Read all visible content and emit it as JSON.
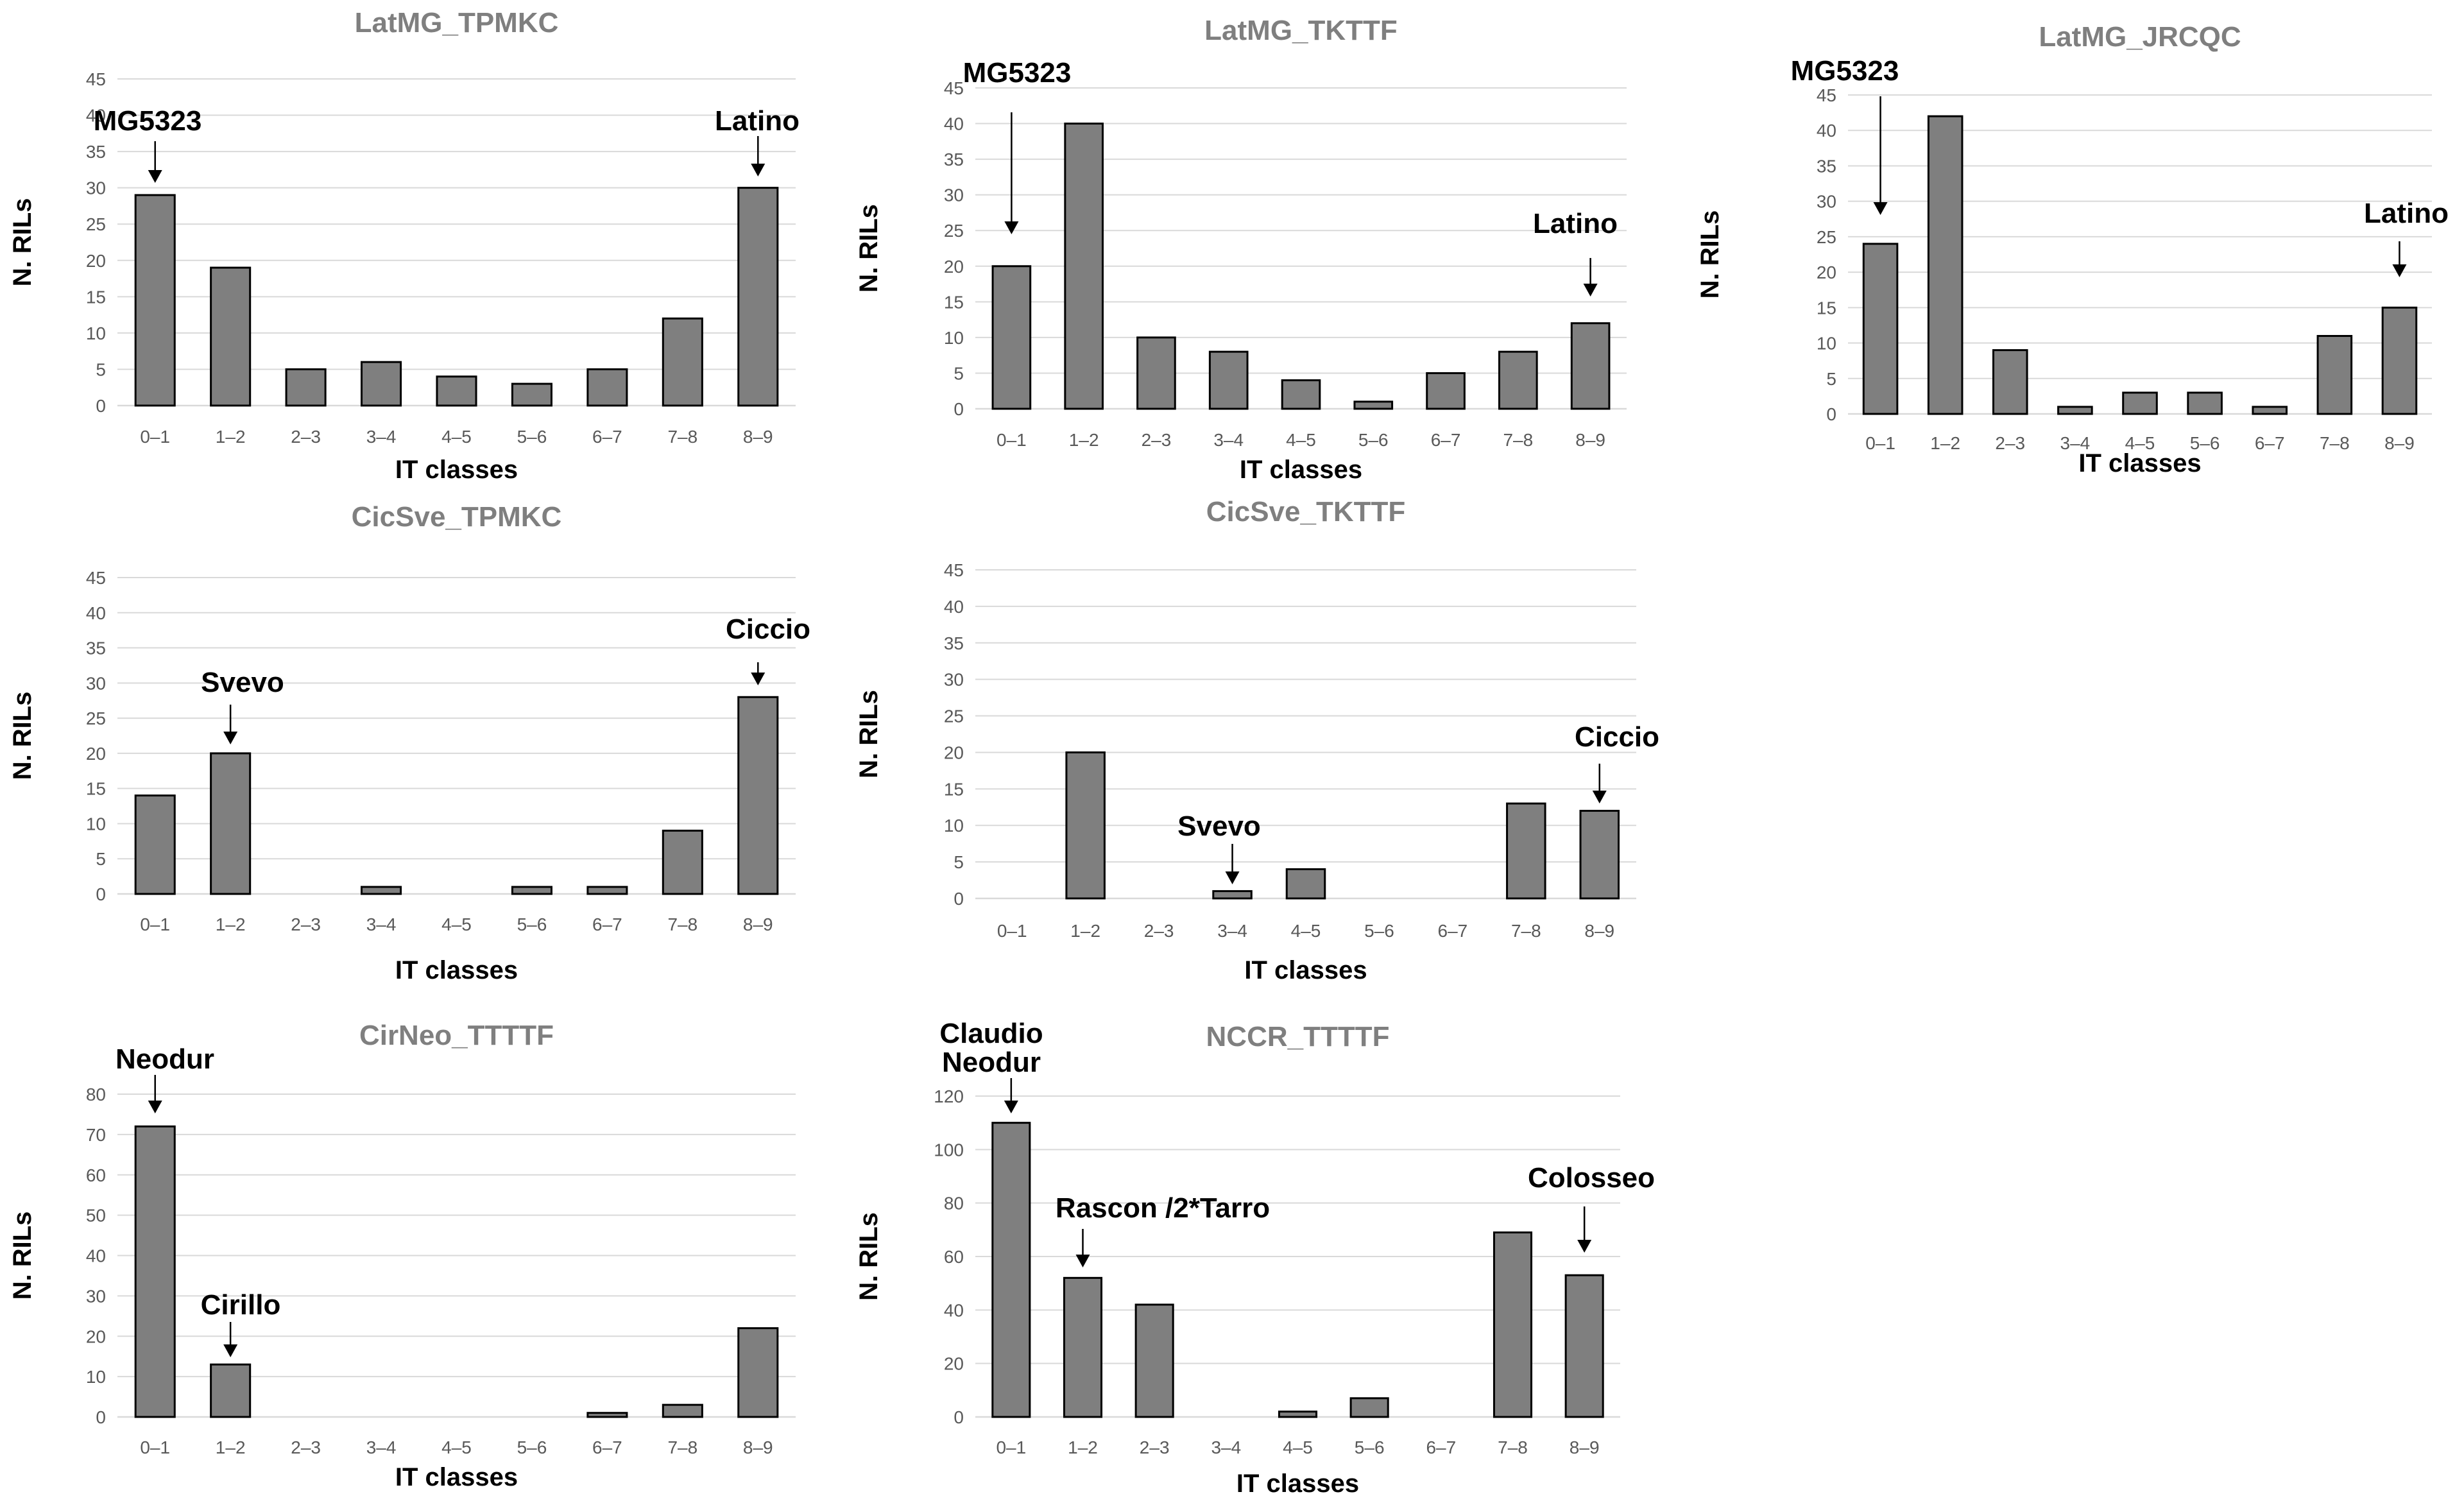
{
  "figure": {
    "palette": {
      "bar_fill": "#7f7f7f",
      "bar_stroke": "#000000",
      "title": "#7f7f7f",
      "grid": "#d9d9d9",
      "tick": "#595959"
    }
  },
  "chart_data": [
    {
      "type": "bar",
      "title": "LatMG_TPMKC",
      "xlabel": "IT classes",
      "ylabel": "N. RILs",
      "ylim": [
        0,
        45
      ],
      "yticks": [
        0,
        5,
        10,
        15,
        20,
        25,
        30,
        35,
        40,
        45
      ],
      "categories": [
        "0–1",
        "1–2",
        "2–3",
        "3–4",
        "4–5",
        "5–6",
        "6–7",
        "7–8",
        "8–9"
      ],
      "values": [
        29,
        19,
        5,
        6,
        4,
        3,
        5,
        12,
        30
      ],
      "annotations": [
        {
          "text": "MG5323",
          "category_index": 0
        },
        {
          "text": "Latino",
          "category_index": 8
        }
      ]
    },
    {
      "type": "bar",
      "title": "LatMG_TKTTF",
      "xlabel": "IT classes",
      "ylabel": "N. RILs",
      "ylim": [
        0,
        45
      ],
      "yticks": [
        0,
        5,
        10,
        15,
        20,
        25,
        30,
        35,
        40,
        45
      ],
      "categories": [
        "0–1",
        "1–2",
        "2–3",
        "3–4",
        "4–5",
        "5–6",
        "6–7",
        "7–8",
        "8–9"
      ],
      "values": [
        20,
        40,
        10,
        8,
        4,
        1,
        5,
        8,
        12
      ],
      "annotations": [
        {
          "text": "MG5323",
          "category_index": 0
        },
        {
          "text": "Latino",
          "category_index": 8
        }
      ]
    },
    {
      "type": "bar",
      "title": "LatMG_JRCQC",
      "xlabel": "IT classes",
      "ylabel": "N. RILs",
      "ylim": [
        0,
        45
      ],
      "yticks": [
        0,
        5,
        10,
        15,
        20,
        25,
        30,
        35,
        40,
        45
      ],
      "categories": [
        "0–1",
        "1–2",
        "2–3",
        "3–4",
        "4–5",
        "5–6",
        "6–7",
        "7–8",
        "8–9"
      ],
      "values": [
        24,
        42,
        9,
        1,
        3,
        3,
        1,
        11,
        15
      ],
      "annotations": [
        {
          "text": "MG5323",
          "category_index": 0
        },
        {
          "text": "Latino",
          "category_index": 8
        }
      ]
    },
    {
      "type": "bar",
      "title": "CicSve_TPMKC",
      "xlabel": "IT classes",
      "ylabel": "N. RILs",
      "ylim": [
        0,
        45
      ],
      "yticks": [
        0,
        5,
        10,
        15,
        20,
        25,
        30,
        35,
        40,
        45
      ],
      "categories": [
        "0–1",
        "1–2",
        "2–3",
        "3–4",
        "4–5",
        "5–6",
        "6–7",
        "7–8",
        "8–9"
      ],
      "values": [
        14,
        20,
        0,
        1,
        0,
        1,
        1,
        9,
        28
      ],
      "annotations": [
        {
          "text": "Svevo",
          "category_index": 1
        },
        {
          "text": "Ciccio",
          "category_index": 8
        }
      ]
    },
    {
      "type": "bar",
      "title": "CicSve_TKTTF",
      "xlabel": "IT classes",
      "ylabel": "N. RILs",
      "ylim": [
        0,
        45
      ],
      "yticks": [
        0,
        5,
        10,
        15,
        20,
        25,
        30,
        35,
        40,
        45
      ],
      "categories": [
        "0–1",
        "1–2",
        "2–3",
        "3–4",
        "4–5",
        "5–6",
        "6–7",
        "7–8",
        "8–9"
      ],
      "values": [
        0,
        20,
        0,
        1,
        4,
        0,
        0,
        13,
        12
      ],
      "annotations": [
        {
          "text": "Svevo",
          "category_index": 3
        },
        {
          "text": "Ciccio",
          "category_index": 8
        }
      ]
    },
    {
      "type": "bar",
      "title": "CirNeo_TTTTF",
      "xlabel": "IT classes",
      "ylabel": "N. RILs",
      "ylim": [
        0,
        80
      ],
      "yticks": [
        0,
        10,
        20,
        30,
        40,
        50,
        60,
        70,
        80
      ],
      "categories": [
        "0–1",
        "1–2",
        "2–3",
        "3–4",
        "4–5",
        "5–6",
        "6–7",
        "7–8",
        "8–9"
      ],
      "values": [
        72,
        13,
        0,
        0,
        0,
        0,
        1,
        3,
        22
      ],
      "annotations": [
        {
          "text": "Neodur",
          "category_index": 0
        },
        {
          "text": "Cirillo",
          "category_index": 1
        }
      ]
    },
    {
      "type": "bar",
      "title": "NCCR_TTTTF",
      "xlabel": "IT classes",
      "ylabel": "N. RILs",
      "ylim": [
        0,
        120
      ],
      "yticks": [
        0,
        20,
        40,
        60,
        80,
        100,
        120
      ],
      "categories": [
        "0–1",
        "1–2",
        "2–3",
        "3–4",
        "4–5",
        "5–6",
        "6–7",
        "7–8",
        "8–9"
      ],
      "values": [
        110,
        52,
        42,
        0,
        2,
        7,
        0,
        69,
        53
      ],
      "annotations": [
        {
          "text": "Claudio",
          "category_index": 0
        },
        {
          "text": "Neodur",
          "category_index": 0
        },
        {
          "text": "Rascon /2*Tarro",
          "category_index": 1
        },
        {
          "text": "Colosseo",
          "category_index": 8
        }
      ]
    }
  ]
}
